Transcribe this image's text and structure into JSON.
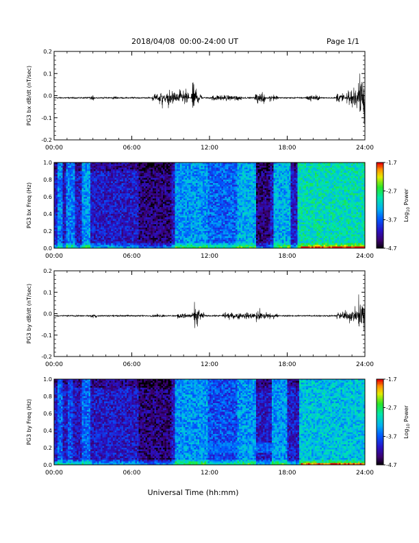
{
  "header": {
    "date_range": "2018/04/08  00:00-24:00 UT",
    "page": "Page 1/1"
  },
  "xaxis_label": "Universal Time (hh:mm)",
  "chart_data": [
    {
      "type": "line",
      "ylabel": "PG3 bx dB/dt (nT/sec)",
      "xlim": [
        0,
        24
      ],
      "ylim": [
        -0.2,
        0.2
      ],
      "x_ticks": [
        "00:00",
        "06:00",
        "12:00",
        "18:00",
        "24:00"
      ],
      "y_ticks": [
        "0.2",
        "0.1",
        "0.0",
        "-0.1",
        "-0.2"
      ],
      "activity_bursts": [
        {
          "t_hours": [
            2.8,
            3.1
          ],
          "amplitude": 0.012
        },
        {
          "t_hours": [
            4.5,
            4.8
          ],
          "amplitude": 0.01
        },
        {
          "t_hours": [
            7.6,
            9.0
          ],
          "amplitude": 0.02
        },
        {
          "t_hours": [
            8.1,
            8.4
          ],
          "amplitude": 0.045
        },
        {
          "t_hours": [
            8.8,
            10.4
          ],
          "amplitude": 0.04
        },
        {
          "t_hours": [
            10.6,
            11.0
          ],
          "amplitude": 0.07
        },
        {
          "t_hours": [
            11.0,
            11.4
          ],
          "amplitude": 0.03
        },
        {
          "t_hours": [
            12.2,
            14.5
          ],
          "amplitude": 0.015
        },
        {
          "t_hours": [
            15.5,
            16.3
          ],
          "amplitude": 0.03
        },
        {
          "t_hours": [
            16.6,
            17.3
          ],
          "amplitude": 0.015
        },
        {
          "t_hours": [
            19.5,
            20.5
          ],
          "amplitude": 0.015
        },
        {
          "t_hours": [
            21.8,
            22.5
          ],
          "amplitude": 0.03
        },
        {
          "t_hours": [
            22.6,
            23.2
          ],
          "amplitude": 0.04
        },
        {
          "t_hours": [
            23.2,
            23.8
          ],
          "amplitude": 0.07
        },
        {
          "t_hours": [
            23.6,
            24.0
          ],
          "amplitude": 0.13
        }
      ]
    },
    {
      "type": "heatmap",
      "ylabel": "PG3 bx Freq (Hz)",
      "xlim": [
        0,
        24
      ],
      "ylim": [
        0.0,
        1.0
      ],
      "x_ticks": [
        "00:00",
        "06:00",
        "12:00",
        "18:00",
        "24:00"
      ],
      "y_ticks": [
        "1.0",
        "0.8",
        "0.6",
        "0.4",
        "0.2",
        "0.0"
      ],
      "colorbar": {
        "label": "Log10 Power",
        "label_base": "Log",
        "label_sub": "10",
        "label_rest": " Power",
        "ticks": [
          "-1.7",
          "-2.7",
          "-3.7",
          "-4.7"
        ],
        "range": [
          -4.7,
          -1.7
        ]
      },
      "bright_bands": [
        {
          "t_hours": [
            0.3,
            0.6
          ],
          "level": 0.55
        },
        {
          "t_hours": [
            1.0,
            1.6
          ],
          "level": 0.55
        },
        {
          "t_hours": [
            2.1,
            2.8
          ],
          "level": 0.6
        },
        {
          "t_hours": [
            3.4,
            3.7
          ],
          "level": 0.3
        },
        {
          "t_hours": [
            5.2,
            5.5
          ],
          "level": 0.3
        },
        {
          "t_hours": [
            9.3,
            11.8
          ],
          "level": 0.6
        },
        {
          "t_hours": [
            11.8,
            14.2
          ],
          "level": 0.5
        },
        {
          "t_hours": [
            14.2,
            15.6
          ],
          "level": 0.65
        },
        {
          "t_hours": [
            17.0,
            18.2
          ],
          "level": 0.65
        },
        {
          "t_hours": [
            18.8,
            24.0
          ],
          "level": 0.8
        }
      ],
      "dark_bands": [
        {
          "t_hours": [
            6.5,
            9.0
          ],
          "level": -0.15
        },
        {
          "t_hours": [
            15.6,
            16.7
          ],
          "level": -0.1
        }
      ]
    },
    {
      "type": "line",
      "ylabel": "PG3 by dB/dt (nT/sec)",
      "xlim": [
        0,
        24
      ],
      "ylim": [
        -0.2,
        0.2
      ],
      "x_ticks": [
        "00:00",
        "06:00",
        "12:00",
        "18:00",
        "24:00"
      ],
      "y_ticks": [
        "0.2",
        "0.1",
        "0.0",
        "-0.1",
        "-0.2"
      ],
      "activity_bursts": [
        {
          "t_hours": [
            2.8,
            3.3
          ],
          "amplitude": 0.012
        },
        {
          "t_hours": [
            7.5,
            8.5
          ],
          "amplitude": 0.008
        },
        {
          "t_hours": [
            9.5,
            10.8
          ],
          "amplitude": 0.015
        },
        {
          "t_hours": [
            10.8,
            11.2
          ],
          "amplitude": 0.065
        },
        {
          "t_hours": [
            11.2,
            11.6
          ],
          "amplitude": 0.02
        },
        {
          "t_hours": [
            13.0,
            15.5
          ],
          "amplitude": 0.018
        },
        {
          "t_hours": [
            15.6,
            16.4
          ],
          "amplitude": 0.03
        },
        {
          "t_hours": [
            16.4,
            17.3
          ],
          "amplitude": 0.015
        },
        {
          "t_hours": [
            21.8,
            22.8
          ],
          "amplitude": 0.025
        },
        {
          "t_hours": [
            22.8,
            23.5
          ],
          "amplitude": 0.04
        },
        {
          "t_hours": [
            23.5,
            24.0
          ],
          "amplitude": 0.11
        }
      ]
    },
    {
      "type": "heatmap",
      "ylabel": "PG3 by Freq (Hz)",
      "xlim": [
        0,
        24
      ],
      "ylim": [
        0.0,
        1.0
      ],
      "x_ticks": [
        "00:00",
        "06:00",
        "12:00",
        "18:00",
        "24:00"
      ],
      "y_ticks": [
        "1.0",
        "0.8",
        "0.6",
        "0.4",
        "0.2",
        "0.0"
      ],
      "colorbar": {
        "label": "Log10 Power",
        "label_base": "Log",
        "label_sub": "10",
        "label_rest": " Power",
        "ticks": [
          "-1.7",
          "-2.7",
          "-3.7",
          "-4.7"
        ],
        "range": [
          -4.7,
          -1.7
        ]
      },
      "bright_bands": [
        {
          "t_hours": [
            0.3,
            0.6
          ],
          "level": 0.5
        },
        {
          "t_hours": [
            1.1,
            1.5
          ],
          "level": 0.45
        },
        {
          "t_hours": [
            2.2,
            2.8
          ],
          "level": 0.5
        },
        {
          "t_hours": [
            9.4,
            11.9
          ],
          "level": 0.6
        },
        {
          "t_hours": [
            11.9,
            14.2
          ],
          "level": 0.45
        },
        {
          "t_hours": [
            14.2,
            15.6
          ],
          "level": 0.6
        },
        {
          "t_hours": [
            16.8,
            18.0
          ],
          "level": 0.6
        },
        {
          "t_hours": [
            19.0,
            24.0
          ],
          "level": 0.7
        }
      ],
      "dark_bands": [
        {
          "t_hours": [
            6.5,
            9.0
          ],
          "level": -0.15
        }
      ],
      "low_freq_band": {
        "t_hours": [
          11.5,
          17.5
        ],
        "freq": [
          0.15,
          0.25
        ],
        "level": 0.35
      }
    }
  ]
}
